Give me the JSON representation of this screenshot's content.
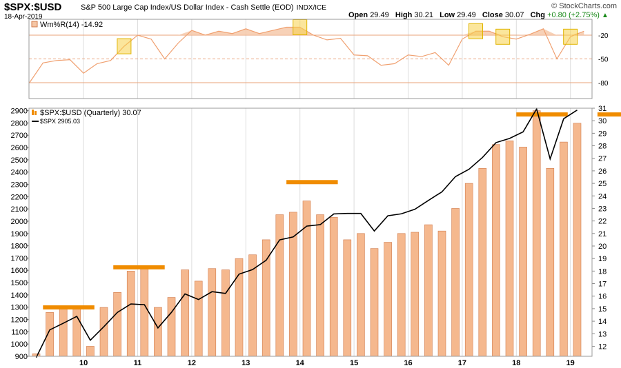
{
  "header": {
    "ticker": "$SPX:$USD",
    "description": "S&P 500 Large Cap Index/US Dollar Index - Cash Settle (EOD)",
    "exchange": "INDX/ICE",
    "date": "18-Apr-2019",
    "brand": "© StockCharts.com",
    "quote": {
      "open_label": "Open",
      "open": "29.49",
      "high_label": "High",
      "high": "30.21",
      "low_label": "Low",
      "low": "29.49",
      "close_label": "Close",
      "close": "30.07",
      "chg_label": "Chg",
      "chg": "+0.80 (+2.75%)"
    }
  },
  "colors": {
    "bar_fill": "#f5b88e",
    "bar_stroke": "#d07a4a",
    "price_line": "#000000",
    "wr_line": "#f0a070",
    "wr_fill": "#f5c6a5",
    "level_line": "#e8a37a",
    "highlight": "#f7d24a",
    "top_marker": "#f08c00",
    "grid": "#dddddd",
    "up": "#1a8a1a"
  },
  "chart_data": [
    {
      "type": "line",
      "name": "williams-r-panel",
      "legend": "Wm%R(14) -14.92",
      "ylim": [
        -100,
        0
      ],
      "y_ticks": [
        -20,
        -50,
        -80
      ],
      "y_tick_labels": [
        "-20",
        "-50",
        "-80"
      ],
      "levels": [
        -20,
        -50,
        -80
      ],
      "values": [
        -80,
        -55,
        -52,
        -51,
        -68,
        -56,
        -52,
        -34,
        -20,
        -25,
        -50,
        -30,
        -14,
        -20,
        -15,
        -18,
        -12,
        -18,
        -14,
        -10,
        -10,
        -20,
        -26,
        -24,
        -45,
        -46,
        -58,
        -56,
        -45,
        -47,
        -42,
        -58,
        -25,
        -15,
        -15,
        -22,
        -25,
        -19,
        -12,
        -50,
        -22,
        -15
      ],
      "highlight_indexes": [
        7,
        20,
        33,
        35,
        40
      ]
    },
    {
      "type": "bar",
      "name": "spx-usd-quarterly",
      "legend": "$SPX:$USD (Quarterly) 30.07",
      "ylim": [
        11.2,
        31
      ],
      "y_ticks": [
        12,
        13,
        14,
        15,
        16,
        17,
        18,
        19,
        20,
        21,
        22,
        23,
        24,
        25,
        26,
        27,
        28,
        29,
        30,
        31
      ],
      "x_labels": [
        "10",
        "11",
        "12",
        "13",
        "14",
        "15",
        "16",
        "17",
        "18",
        "19"
      ],
      "values": [
        11.4,
        14.7,
        15.0,
        15.1,
        12.0,
        15.1,
        16.3,
        18.0,
        18.2,
        15.1,
        15.9,
        18.1,
        17.2,
        18.2,
        18.1,
        19.0,
        19.3,
        20.5,
        22.5,
        22.7,
        23.6,
        22.5,
        22.3,
        20.5,
        21.0,
        19.8,
        20.3,
        21.0,
        21.1,
        21.7,
        21.2,
        23.0,
        25.0,
        26.2,
        28.1,
        28.4,
        27.9,
        30.8,
        26.2,
        28.3,
        29.8
      ],
      "top_markers": [
        {
          "start": 0.5,
          "end": 4.3,
          "value": 15.1
        },
        {
          "start": 5.7,
          "end": 9.5,
          "value": 18.3
        },
        {
          "start": 18.5,
          "end": 22.3,
          "value": 25.1
        },
        {
          "start": 35.5,
          "end": 39.3,
          "value": 30.5
        },
        {
          "start": 41.5,
          "end": 44.0,
          "value": 30.5
        }
      ]
    },
    {
      "type": "line",
      "name": "spx-overlay",
      "legend": "$SPX 2905.03",
      "ylim": [
        900,
        2920
      ],
      "y_ticks": [
        900,
        1000,
        1100,
        1200,
        1300,
        1400,
        1500,
        1600,
        1700,
        1800,
        1900,
        2000,
        2100,
        2200,
        2300,
        2400,
        2500,
        2600,
        2700,
        2800,
        2900
      ],
      "values": [
        890,
        1115,
        1169,
        1225,
        1031,
        1141,
        1257,
        1326,
        1320,
        1131,
        1258,
        1408,
        1362,
        1426,
        1412,
        1569,
        1606,
        1682,
        1848,
        1872,
        1960,
        1972,
        2059,
        2063,
        2063,
        1920,
        2044,
        2060,
        2097,
        2169,
        2239,
        2363,
        2423,
        2519,
        2640,
        2674,
        2727,
        2914,
        2507,
        2834,
        2905
      ]
    }
  ]
}
